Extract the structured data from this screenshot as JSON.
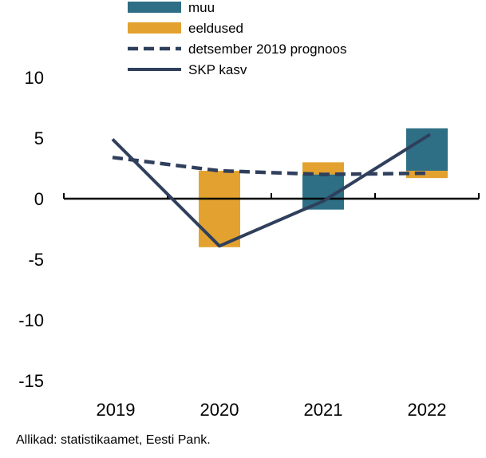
{
  "colors": {
    "muu": "#2e6f85",
    "eeldused": "#e3a22f",
    "line": "#2f3f5c",
    "axis": "#000000"
  },
  "source": "Allikad: statistikaamet, Eesti Pank.",
  "chart_data": {
    "type": "bar",
    "categories": [
      "2019",
      "2020",
      "2021",
      "2022"
    ],
    "ylim": [
      -15,
      10
    ],
    "yticks": [
      "10",
      "5",
      "0",
      "-5",
      "-10",
      "-15"
    ],
    "grid": false,
    "legend_position": "top",
    "series": [
      {
        "name": "muu",
        "kind": "floating-bar",
        "color": "#2e6f85",
        "values": [
          null,
          null,
          [
            -0.9,
            2.0
          ],
          [
            2.3,
            5.8
          ]
        ]
      },
      {
        "name": "eeldused",
        "kind": "floating-bar",
        "color": "#e3a22f",
        "values": [
          null,
          [
            -4.0,
            2.3
          ],
          [
            2.0,
            3.0
          ],
          [
            1.7,
            2.3
          ]
        ]
      },
      {
        "name": "detsember 2019 prognoos",
        "kind": "dashed-line",
        "color": "#2f3f5c",
        "values": [
          3.4,
          2.3,
          2.0,
          2.1
        ]
      },
      {
        "name": "SKP kasv",
        "kind": "line",
        "color": "#2f3f5c",
        "values": [
          4.9,
          -3.9,
          -0.2,
          5.3
        ]
      }
    ]
  }
}
